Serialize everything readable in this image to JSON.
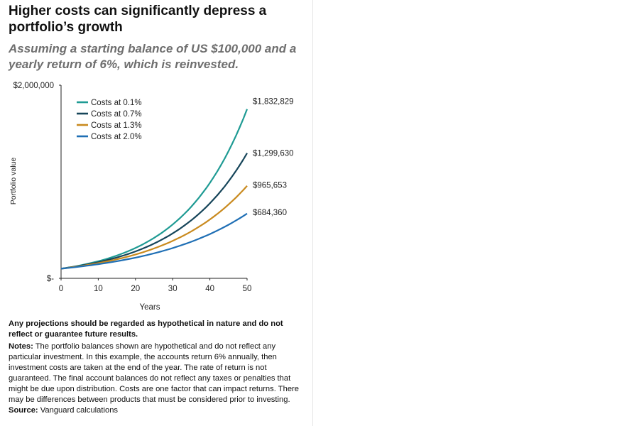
{
  "header": {
    "title": "Higher costs can significantly depress a portfolio’s growth",
    "subtitle": "Assuming a starting balance of US $100,000 and a yearly return of 6%, which is reinvested."
  },
  "chart_data": {
    "type": "line",
    "title": "",
    "xlabel": "Years",
    "ylabel": "Portfolio value",
    "xlim": [
      0,
      50
    ],
    "ylim": [
      0,
      2000000
    ],
    "x_ticks": [
      "0",
      "10",
      "20",
      "30",
      "40",
      "50"
    ],
    "y_ticks": [
      {
        "value": 0,
        "label": "$-"
      },
      {
        "value": 2000000,
        "label": "$2,000,000"
      }
    ],
    "grid": false,
    "legend_position": "top-left",
    "start_value": 100000,
    "annual_return": 0.06,
    "series": [
      {
        "name": "Costs at 0.1%",
        "cost": 0.001,
        "color": "#1f9b94",
        "end_value": 1832829,
        "end_label": "$1,832,829"
      },
      {
        "name": "Costs at 0.7%",
        "cost": 0.007,
        "color": "#16455a",
        "end_value": 1299630,
        "end_label": "$1,299,630"
      },
      {
        "name": "Costs at 1.3%",
        "cost": 0.013,
        "color": "#c98a1e",
        "end_value": 965653,
        "end_label": "$965,653"
      },
      {
        "name": "Costs at 2.0%",
        "cost": 0.02,
        "color": "#1f6fb5",
        "end_value": 684360,
        "end_label": "$684,360"
      }
    ]
  },
  "footnotes": {
    "disclaimer": "Any projections should be regarded as hypothetical in nature and do not reflect or guarantee future results.",
    "notes_label": "Notes:",
    "notes_text": " The portfolio balances shown are hypothetical and do not reflect any particular investment. In this example, the accounts return 6% annually, then investment costs are taken at the end of the year. The rate of return is not guaranteed. The final account balances do not reflect any taxes or penalties that might be due upon distribution. Costs are one factor that can impact returns. There may be differences between products that must be considered prior to investing.",
    "source_label": "Source:",
    "source_text": " Vanguard calculations"
  }
}
